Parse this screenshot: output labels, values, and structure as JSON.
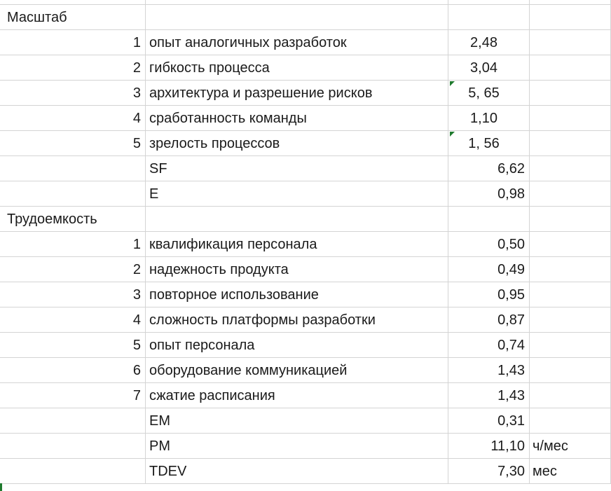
{
  "rows": [
    {
      "a": "Масштаб",
      "a_align": "left",
      "b": "",
      "c": "",
      "d": "",
      "flag": false
    },
    {
      "a": "1",
      "a_align": "right",
      "b": "опыт аналогичных разработок",
      "c": "2,48",
      "c_align": "center",
      "d": "",
      "flag": false
    },
    {
      "a": "2",
      "a_align": "right",
      "b": "гибкость процесса",
      "c": "3,04",
      "c_align": "center",
      "d": "",
      "flag": false
    },
    {
      "a": "3",
      "a_align": "right",
      "b": "архитектура и разрешение рисков",
      "c": "5, 65",
      "c_align": "center",
      "d": "",
      "flag": true
    },
    {
      "a": "4",
      "a_align": "right",
      "b": "сработанность команды",
      "c": "1,10",
      "c_align": "center",
      "d": "",
      "flag": false
    },
    {
      "a": "5",
      "a_align": "right",
      "b": "зрелость процессов",
      "c": "1, 56",
      "c_align": "center",
      "d": "",
      "flag": true
    },
    {
      "a": "",
      "a_align": "right",
      "b": "SF",
      "c": "6,62",
      "c_align": "right",
      "d": "",
      "flag": false
    },
    {
      "a": "",
      "a_align": "right",
      "b": "E",
      "c": "0,98",
      "c_align": "right",
      "d": "",
      "flag": false
    },
    {
      "a": "Трудоемкость",
      "a_align": "left",
      "b": "",
      "c": "",
      "d": "",
      "flag": false
    },
    {
      "a": "1",
      "a_align": "right",
      "b": "квалификация персонала",
      "c": "0,50",
      "c_align": "right",
      "d": "",
      "flag": false
    },
    {
      "a": "2",
      "a_align": "right",
      "b": "надежность продукта",
      "c": "0,49",
      "c_align": "right",
      "d": "",
      "flag": false
    },
    {
      "a": "3",
      "a_align": "right",
      "b": "повторное использование",
      "c": "0,95",
      "c_align": "right",
      "d": "",
      "flag": false
    },
    {
      "a": "4",
      "a_align": "right",
      "b": "сложность платформы разработки",
      "c": "0,87",
      "c_align": "right",
      "d": "",
      "flag": false
    },
    {
      "a": "5",
      "a_align": "right",
      "b": "опыт персонала",
      "c": "0,74",
      "c_align": "right",
      "d": "",
      "flag": false
    },
    {
      "a": "6",
      "a_align": "right",
      "b": "оборудование коммуникацией",
      "c": "1,43",
      "c_align": "right",
      "d": "",
      "flag": false
    },
    {
      "a": "7",
      "a_align": "right",
      "b": "сжатие расписания",
      "c": "1,43",
      "c_align": "right",
      "d": "",
      "flag": false
    },
    {
      "a": "",
      "a_align": "right",
      "b": "EM",
      "c": "0,31",
      "c_align": "right",
      "d": "",
      "flag": false
    },
    {
      "a": "",
      "a_align": "right",
      "b": "PM",
      "c": "11,10",
      "c_align": "right",
      "d": "ч/мес",
      "flag": false
    },
    {
      "a": "",
      "a_align": "right",
      "b": "TDEV",
      "c": "7,30",
      "c_align": "right",
      "d": "мес",
      "flag": false
    }
  ],
  "colors": {
    "gridline": "#d4d4d4",
    "error_indicator": "#1f7a2e",
    "text": "#1a1a1a"
  }
}
